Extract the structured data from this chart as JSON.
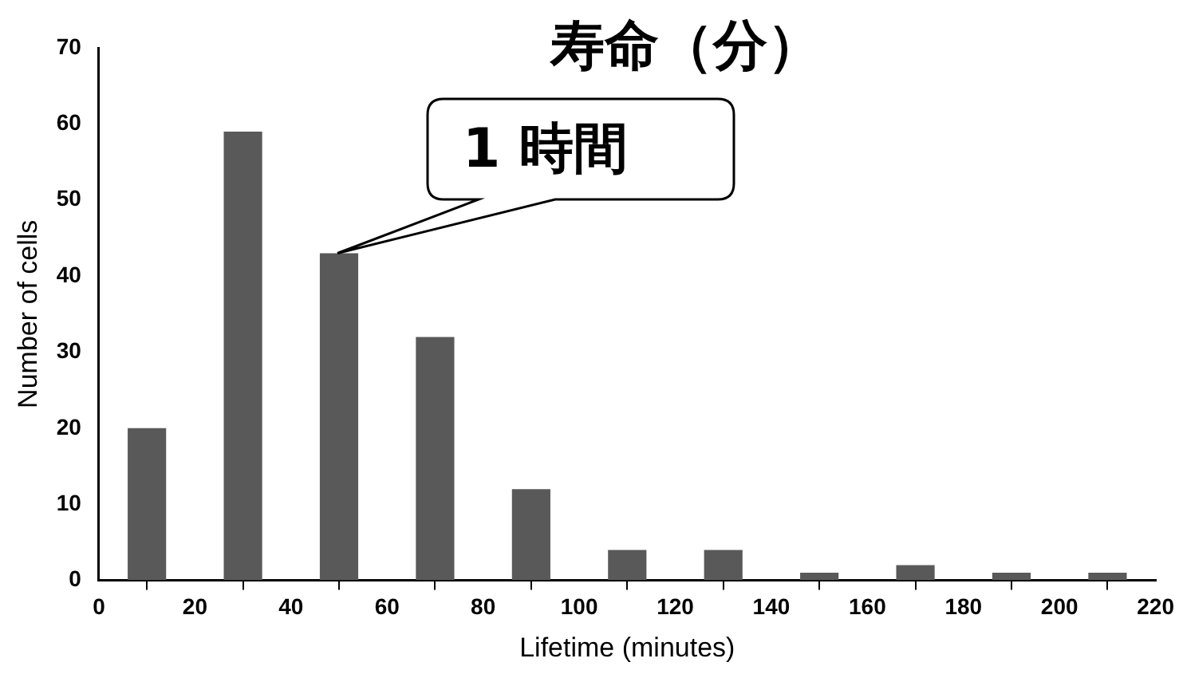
{
  "chart_data": {
    "type": "histogram",
    "title": "寿命（分）",
    "xlabel": "Lifetime (minutes)",
    "ylabel": "Number of cells",
    "bins": [
      0,
      20,
      40,
      60,
      80,
      100,
      120,
      140,
      160,
      180,
      200,
      220
    ],
    "values": [
      20,
      59,
      43,
      32,
      12,
      4,
      4,
      1,
      2,
      1,
      1
    ],
    "color": "#595959",
    "xlim": [
      0,
      220
    ],
    "xticks": [
      0,
      20,
      40,
      60,
      80,
      100,
      120,
      140,
      160,
      180,
      200,
      220
    ],
    "ylim": [
      0,
      70
    ],
    "yticks": [
      0,
      10,
      20,
      30,
      40,
      50,
      60,
      70
    ],
    "grid": false,
    "legend": false,
    "annotations": [
      {
        "text": "1 時間",
        "x": 50,
        "y": 43
      }
    ]
  }
}
